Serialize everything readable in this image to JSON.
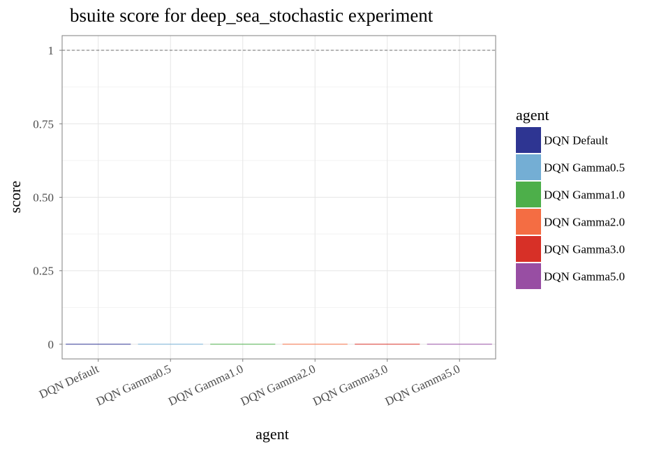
{
  "chart_data": {
    "type": "bar",
    "title": "bsuite score for deep_sea_stochastic experiment",
    "xlabel": "agent",
    "ylabel": "score",
    "categories": [
      "DQN Default",
      "DQN Gamma0.5",
      "DQN Gamma1.0",
      "DQN Gamma2.0",
      "DQN Gamma3.0",
      "DQN Gamma5.0"
    ],
    "values": [
      0,
      0,
      0,
      0,
      0,
      0
    ],
    "colors": [
      "#2e3592",
      "#74aed4",
      "#4daf4a",
      "#f46d43",
      "#d73027",
      "#984ea3"
    ],
    "ylim": [
      -0.05,
      1.05
    ],
    "yticks": [
      0,
      0.25,
      0.5,
      0.75,
      1
    ],
    "ytick_labels": [
      "0",
      "0.25",
      "0.50",
      "0.75",
      "1"
    ],
    "reference_line": 1,
    "grid": true,
    "legend": {
      "title": "agent",
      "position": "right",
      "entries": [
        "DQN Default",
        "DQN Gamma0.5",
        "DQN Gamma1.0",
        "DQN Gamma2.0",
        "DQN Gamma3.0",
        "DQN Gamma5.0"
      ]
    }
  }
}
